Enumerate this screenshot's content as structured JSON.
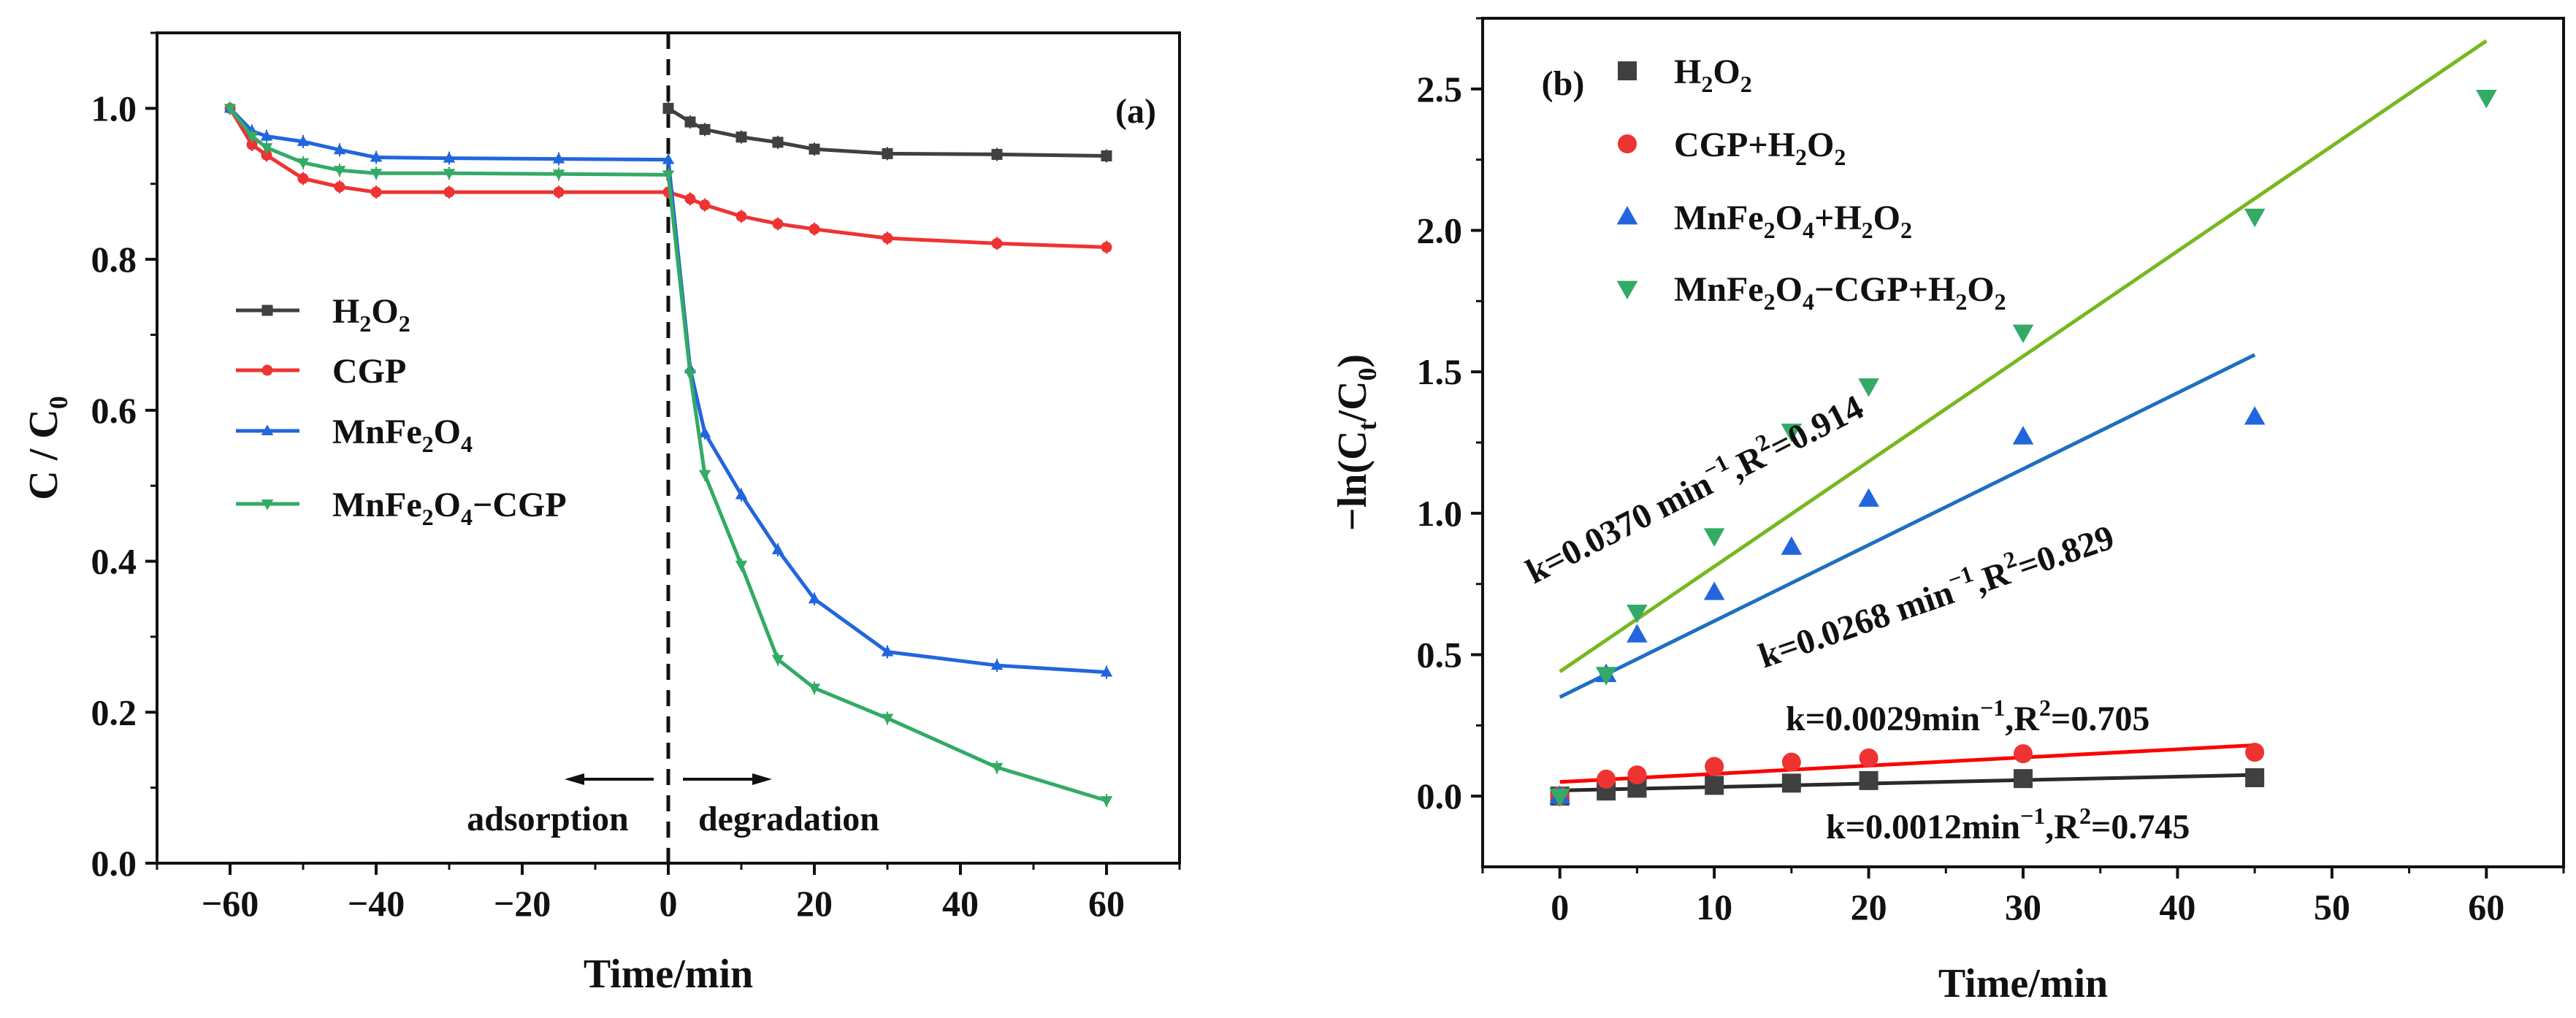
{
  "colors": {
    "h2o2": "#404040",
    "cgp": "#ee3333",
    "mnfe2o4": "#2266dd",
    "composite": "#33aa66",
    "fit_h2o2": "#2a2a2a",
    "fit_cgp": "#ff0000",
    "fit_mnfe2o4": "#1f6fbf",
    "fit_composite": "#77b81f"
  },
  "chart_data": [
    {
      "id": "a",
      "type": "line",
      "panel_label": "(a)",
      "xlabel": "Time/min",
      "ylabel": "C / C0",
      "xlim": [
        -70,
        70
      ],
      "ylim": [
        0,
        1.1
      ],
      "xticks": [
        "−60",
        "−40",
        "−20",
        "0",
        "20",
        "40",
        "60"
      ],
      "yticks": [
        "0.0",
        "0.2",
        "0.4",
        "0.6",
        "0.8",
        "1.0"
      ],
      "annotations": {
        "left": "adsorption",
        "right": "degradation"
      },
      "divider_x": 0,
      "legend_position": "center-left",
      "series": [
        {
          "name": "H₂O₂",
          "legend_parts": [
            [
              "H",
              ""
            ],
            [
              "2",
              "sub"
            ],
            [
              "O",
              ""
            ],
            [
              "2",
              "sub"
            ]
          ],
          "color_key": "h2o2",
          "marker": "square",
          "x": [
            0,
            3,
            5,
            10,
            15,
            20,
            30,
            45,
            60
          ],
          "values": [
            1.0,
            0.982,
            0.972,
            0.962,
            0.955,
            0.946,
            0.94,
            0.939,
            0.937
          ]
        },
        {
          "name": "CGP",
          "legend_parts": [
            [
              "CGP",
              ""
            ]
          ],
          "color_key": "cgp",
          "marker": "circle",
          "x": [
            -60,
            -57,
            -55,
            -50,
            -45,
            -40,
            -30,
            -15,
            0,
            3,
            5,
            10,
            15,
            20,
            30,
            45,
            60
          ],
          "values": [
            1.0,
            0.952,
            0.938,
            0.907,
            0.896,
            0.889,
            0.889,
            0.889,
            0.889,
            0.88,
            0.872,
            0.857,
            0.847,
            0.84,
            0.828,
            0.821,
            0.816
          ]
        },
        {
          "name": "MnFe₂O₄",
          "legend_parts": [
            [
              "MnFe",
              ""
            ],
            [
              "2",
              "sub"
            ],
            [
              "O",
              ""
            ],
            [
              "4",
              "sub"
            ]
          ],
          "color_key": "mnfe2o4",
          "marker": "triangle-up",
          "x": [
            -60,
            -57,
            -55,
            -50,
            -45,
            -40,
            -30,
            -15,
            0,
            3,
            5,
            10,
            15,
            20,
            30,
            45,
            60
          ],
          "values": [
            1.0,
            0.97,
            0.963,
            0.956,
            0.945,
            0.935,
            0.934,
            0.933,
            0.932,
            0.655,
            0.57,
            0.488,
            0.415,
            0.35,
            0.28,
            0.262,
            0.253
          ]
        },
        {
          "name": "MnFe₂O₄−CGP",
          "legend_parts": [
            [
              "MnFe",
              ""
            ],
            [
              "2",
              "sub"
            ],
            [
              "O",
              ""
            ],
            [
              "4",
              "sub"
            ],
            [
              "−CGP",
              ""
            ]
          ],
          "color_key": "composite",
          "marker": "triangle-down",
          "x": [
            -60,
            -57,
            -55,
            -50,
            -45,
            -40,
            -30,
            -15,
            0,
            3,
            5,
            10,
            15,
            20,
            30,
            45,
            60
          ],
          "values": [
            1.0,
            0.963,
            0.948,
            0.928,
            0.918,
            0.914,
            0.914,
            0.913,
            0.912,
            0.648,
            0.515,
            0.395,
            0.27,
            0.232,
            0.192,
            0.127,
            0.083
          ]
        }
      ]
    },
    {
      "id": "b",
      "type": "scatter",
      "panel_label": "(b)",
      "xlabel": "Time/min",
      "ylabel": "−ln(Ct/C0)",
      "xlim": [
        -5,
        65
      ],
      "ylim": [
        -0.25,
        2.75
      ],
      "xticks": [
        "0",
        "10",
        "20",
        "30",
        "40",
        "50",
        "60"
      ],
      "yticks": [
        "0.0",
        "0.5",
        "1.0",
        "1.5",
        "2.0",
        "2.5"
      ],
      "legend_position": "top-left",
      "series": [
        {
          "name": "H₂O₂",
          "legend_parts": [
            [
              "H",
              ""
            ],
            [
              "2",
              "sub"
            ],
            [
              "O",
              ""
            ],
            [
              "2",
              "sub"
            ]
          ],
          "color_key": "h2o2",
          "fit_color_key": "fit_h2o2",
          "marker": "square",
          "x": [
            0,
            3,
            5,
            10,
            15,
            20,
            30,
            45
          ],
          "values": [
            0.0,
            0.018,
            0.028,
            0.038,
            0.046,
            0.055,
            0.062,
            0.065
          ],
          "fit": {
            "x": [
              0,
              45
            ],
            "y": [
              0.02,
              0.075
            ]
          },
          "equation": "k=0.0012min⁻¹,R²=0.745"
        },
        {
          "name": "CGP+H₂O₂",
          "legend_parts": [
            [
              "CGP+H",
              ""
            ],
            [
              "2",
              "sub"
            ],
            [
              "O",
              ""
            ],
            [
              "2",
              "sub"
            ]
          ],
          "color_key": "cgp",
          "fit_color_key": "fit_cgp",
          "marker": "circle",
          "x": [
            0,
            3,
            5,
            10,
            15,
            20,
            30,
            45
          ],
          "values": [
            0.0,
            0.06,
            0.075,
            0.105,
            0.12,
            0.135,
            0.15,
            0.155
          ],
          "fit": {
            "x": [
              0,
              45
            ],
            "y": [
              0.05,
              0.18
            ]
          },
          "equation": "k=0.0029min⁻¹,R²=0.705"
        },
        {
          "name": "MnFe₂O₄+H₂O₂",
          "legend_parts": [
            [
              "MnFe",
              ""
            ],
            [
              "2",
              "sub"
            ],
            [
              "O",
              ""
            ],
            [
              "4",
              "sub"
            ],
            [
              "+H",
              ""
            ],
            [
              "2",
              "sub"
            ],
            [
              "O",
              ""
            ],
            [
              "2",
              "sub"
            ]
          ],
          "color_key": "mnfe2o4",
          "fit_color_key": "fit_mnfe2o4",
          "marker": "triangle-up",
          "x": [
            0,
            3,
            5,
            10,
            15,
            20,
            30,
            45
          ],
          "values": [
            0.0,
            0.43,
            0.57,
            0.72,
            0.88,
            1.05,
            1.27,
            1.34
          ],
          "fit": {
            "x": [
              0,
              45
            ],
            "y": [
              0.35,
              1.56
            ]
          },
          "equation": "k=0.0268 min⁻¹,R²=0.829"
        },
        {
          "name": "MnFe₂O₄−CGP+H₂O₂",
          "legend_parts": [
            [
              "MnFe",
              ""
            ],
            [
              "2",
              "sub"
            ],
            [
              "O",
              ""
            ],
            [
              "4",
              "sub"
            ],
            [
              "−CGP+H",
              ""
            ],
            [
              "2",
              "sub"
            ],
            [
              "O",
              ""
            ],
            [
              "2",
              "sub"
            ]
          ],
          "color_key": "composite",
          "fit_color_key": "fit_composite",
          "marker": "triangle-down",
          "x": [
            0,
            3,
            5,
            10,
            15,
            20,
            30,
            45,
            60
          ],
          "values": [
            0.0,
            0.43,
            0.65,
            0.92,
            1.29,
            1.45,
            1.64,
            2.05,
            2.47
          ],
          "fit": {
            "x": [
              0,
              60
            ],
            "y": [
              0.44,
              2.67
            ]
          },
          "equation": "k=0.0370 min⁻¹,R²=0.914"
        }
      ]
    }
  ]
}
